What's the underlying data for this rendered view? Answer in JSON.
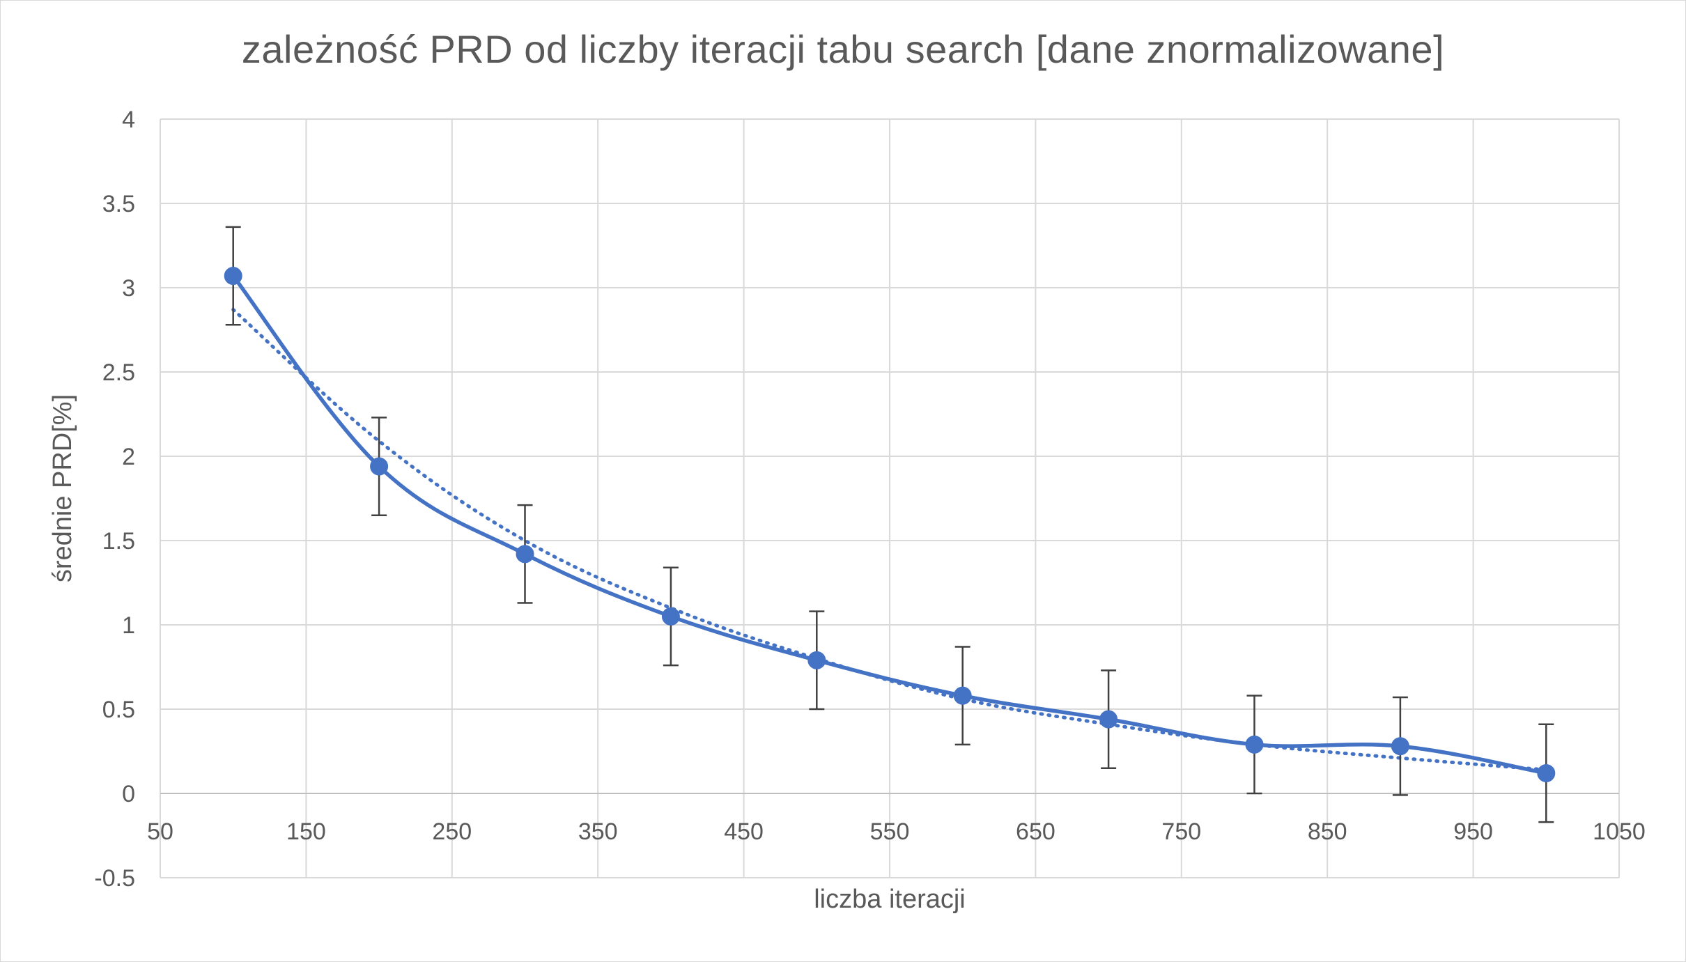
{
  "chart_data": {
    "type": "line",
    "title": "zależność PRD od liczby iteracji tabu search [dane znormalizowane]",
    "xlabel": "liczba iteracji",
    "ylabel": "średnie PRD[%]",
    "xlim": [
      50,
      1050
    ],
    "ylim": [
      -0.5,
      4
    ],
    "x_ticks": [
      "50",
      "150",
      "250",
      "350",
      "450",
      "550",
      "650",
      "750",
      "850",
      "950",
      "1050"
    ],
    "y_ticks": [
      "-0.5",
      "0",
      "0.5",
      "1",
      "1.5",
      "2",
      "2.5",
      "3",
      "3.5",
      "4"
    ],
    "x_tick_values": [
      50,
      150,
      250,
      350,
      450,
      550,
      650,
      750,
      850,
      950,
      1050
    ],
    "y_tick_values": [
      -0.5,
      0,
      0.5,
      1,
      1.5,
      2,
      2.5,
      3,
      3.5,
      4
    ],
    "grid": true,
    "series": [
      {
        "x": [
          100,
          200,
          300,
          400,
          500,
          600,
          700,
          800,
          900,
          1000
        ],
        "values": [
          3.07,
          1.94,
          1.42,
          1.05,
          0.79,
          0.58,
          0.44,
          0.29,
          0.28,
          0.12
        ],
        "error": [
          0.29,
          0.29,
          0.29,
          0.29,
          0.29,
          0.29,
          0.29,
          0.29,
          0.29,
          0.29
        ],
        "color": "#4472c4",
        "line_style": "smooth",
        "marker": "circle"
      }
    ],
    "trendline": {
      "type": "power",
      "style": "dotted",
      "color": "#4472c4",
      "x": [
        100,
        200,
        300,
        400,
        500,
        600,
        700,
        800,
        900,
        1000
      ],
      "values": [
        2.87,
        2.09,
        1.5,
        1.1,
        0.8,
        0.56,
        0.41,
        0.29,
        0.21,
        0.14
      ]
    },
    "colors": {
      "grid": "#d9d9d9",
      "text": "#595959",
      "error_bar": "#404040"
    }
  }
}
